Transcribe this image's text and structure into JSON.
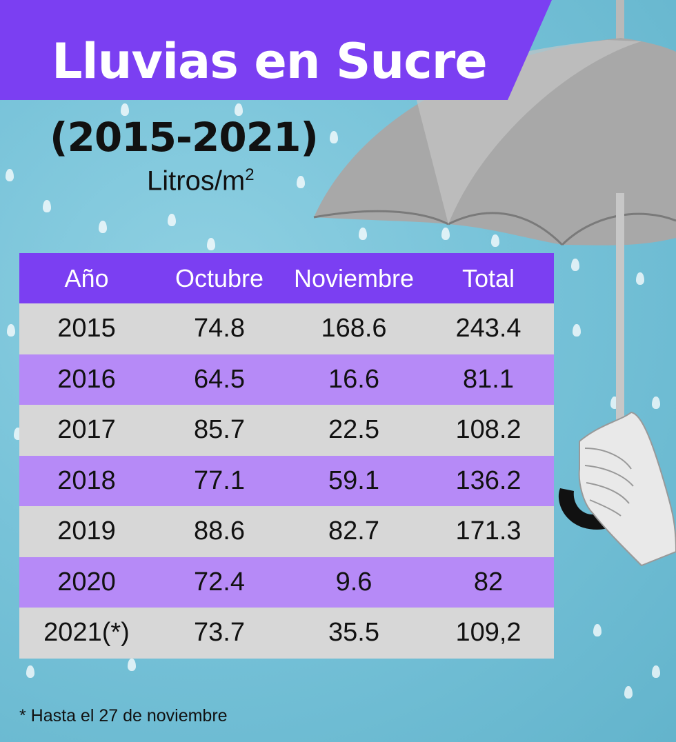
{
  "header": {
    "title": "Lluvias en Sucre",
    "subtitle": "(2015-2021)",
    "unit": "Litros/m",
    "unit_sup": "2"
  },
  "chart_data": {
    "type": "table",
    "columns": [
      "Año",
      "Octubre",
      "Noviembre",
      "Total"
    ],
    "rows": [
      [
        "2015",
        "74.8",
        "168.6",
        "243.4"
      ],
      [
        "2016",
        "64.5",
        "16.6",
        "81.1"
      ],
      [
        "2017",
        "85.7",
        "22.5",
        "108.2"
      ],
      [
        "2018",
        "77.1",
        "59.1",
        "136.2"
      ],
      [
        "2019",
        "88.6",
        "82.7",
        "171.3"
      ],
      [
        "2020",
        "72.4",
        "9.6",
        "82"
      ],
      [
        "2021(*)",
        "73.7",
        "35.5",
        "109,2"
      ]
    ]
  },
  "footnote": "* Hasta el 27 de noviembre",
  "colors": {
    "accent": "#7b3ff2",
    "row_gray": "#d7d7d7",
    "row_purple": "#b68af7",
    "background": "#78c3d9"
  }
}
